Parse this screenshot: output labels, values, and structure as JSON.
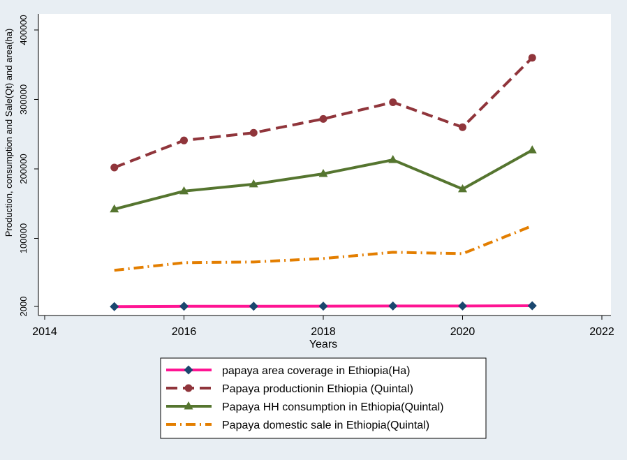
{
  "chart_data": {
    "type": "line",
    "xlabel": "Years",
    "ylabel": "Production, consumption and Sale(Qt) and area(ha)",
    "xlim": [
      2014,
      2022
    ],
    "ylim": [
      0,
      410000
    ],
    "x_ticks": [
      2014,
      2016,
      2018,
      2020,
      2022
    ],
    "x_tick_labels": [
      "2014",
      "2016",
      "2018",
      "2020",
      "2022"
    ],
    "y_ticks": [
      2000,
      100000,
      200000,
      300000,
      400000
    ],
    "y_tick_labels": [
      "2000",
      "100000",
      "200000",
      "300000",
      "400000"
    ],
    "grid": false,
    "legend_position": "bottom",
    "x": [
      2015,
      2016,
      2017,
      2018,
      2019,
      2020,
      2021
    ],
    "series": [
      {
        "name": "papaya area coverage in Ethiopia(Ha)",
        "values": [
          1800,
          2200,
          2300,
          2400,
          2600,
          2600,
          3000
        ],
        "color": "#ff1493",
        "marker": "diamond",
        "marker_color": "#1a476f",
        "line_style": "solid"
      },
      {
        "name": "Papaya productionin Ethiopia (Quintal)",
        "values": [
          202000,
          241000,
          252000,
          272000,
          296000,
          260000,
          360000
        ],
        "color": "#90353b",
        "marker": "circle",
        "marker_color": "#90353b",
        "line_style": "dashed"
      },
      {
        "name": "Papaya HH consumption in Ethiopia(Quintal)",
        "values": [
          142000,
          168000,
          178000,
          193000,
          213000,
          171000,
          227000
        ],
        "color": "#55752f",
        "marker": "triangle",
        "marker_color": "#55752f",
        "line_style": "solid"
      },
      {
        "name": "Papaya domestic sale in Ethiopia(Quintal)",
        "values": [
          54000,
          65000,
          66000,
          71000,
          80000,
          78000,
          118000
        ],
        "color": "#e37e00",
        "marker": "none",
        "marker_color": "#e37e00",
        "line_style": "dash-dot"
      }
    ]
  }
}
